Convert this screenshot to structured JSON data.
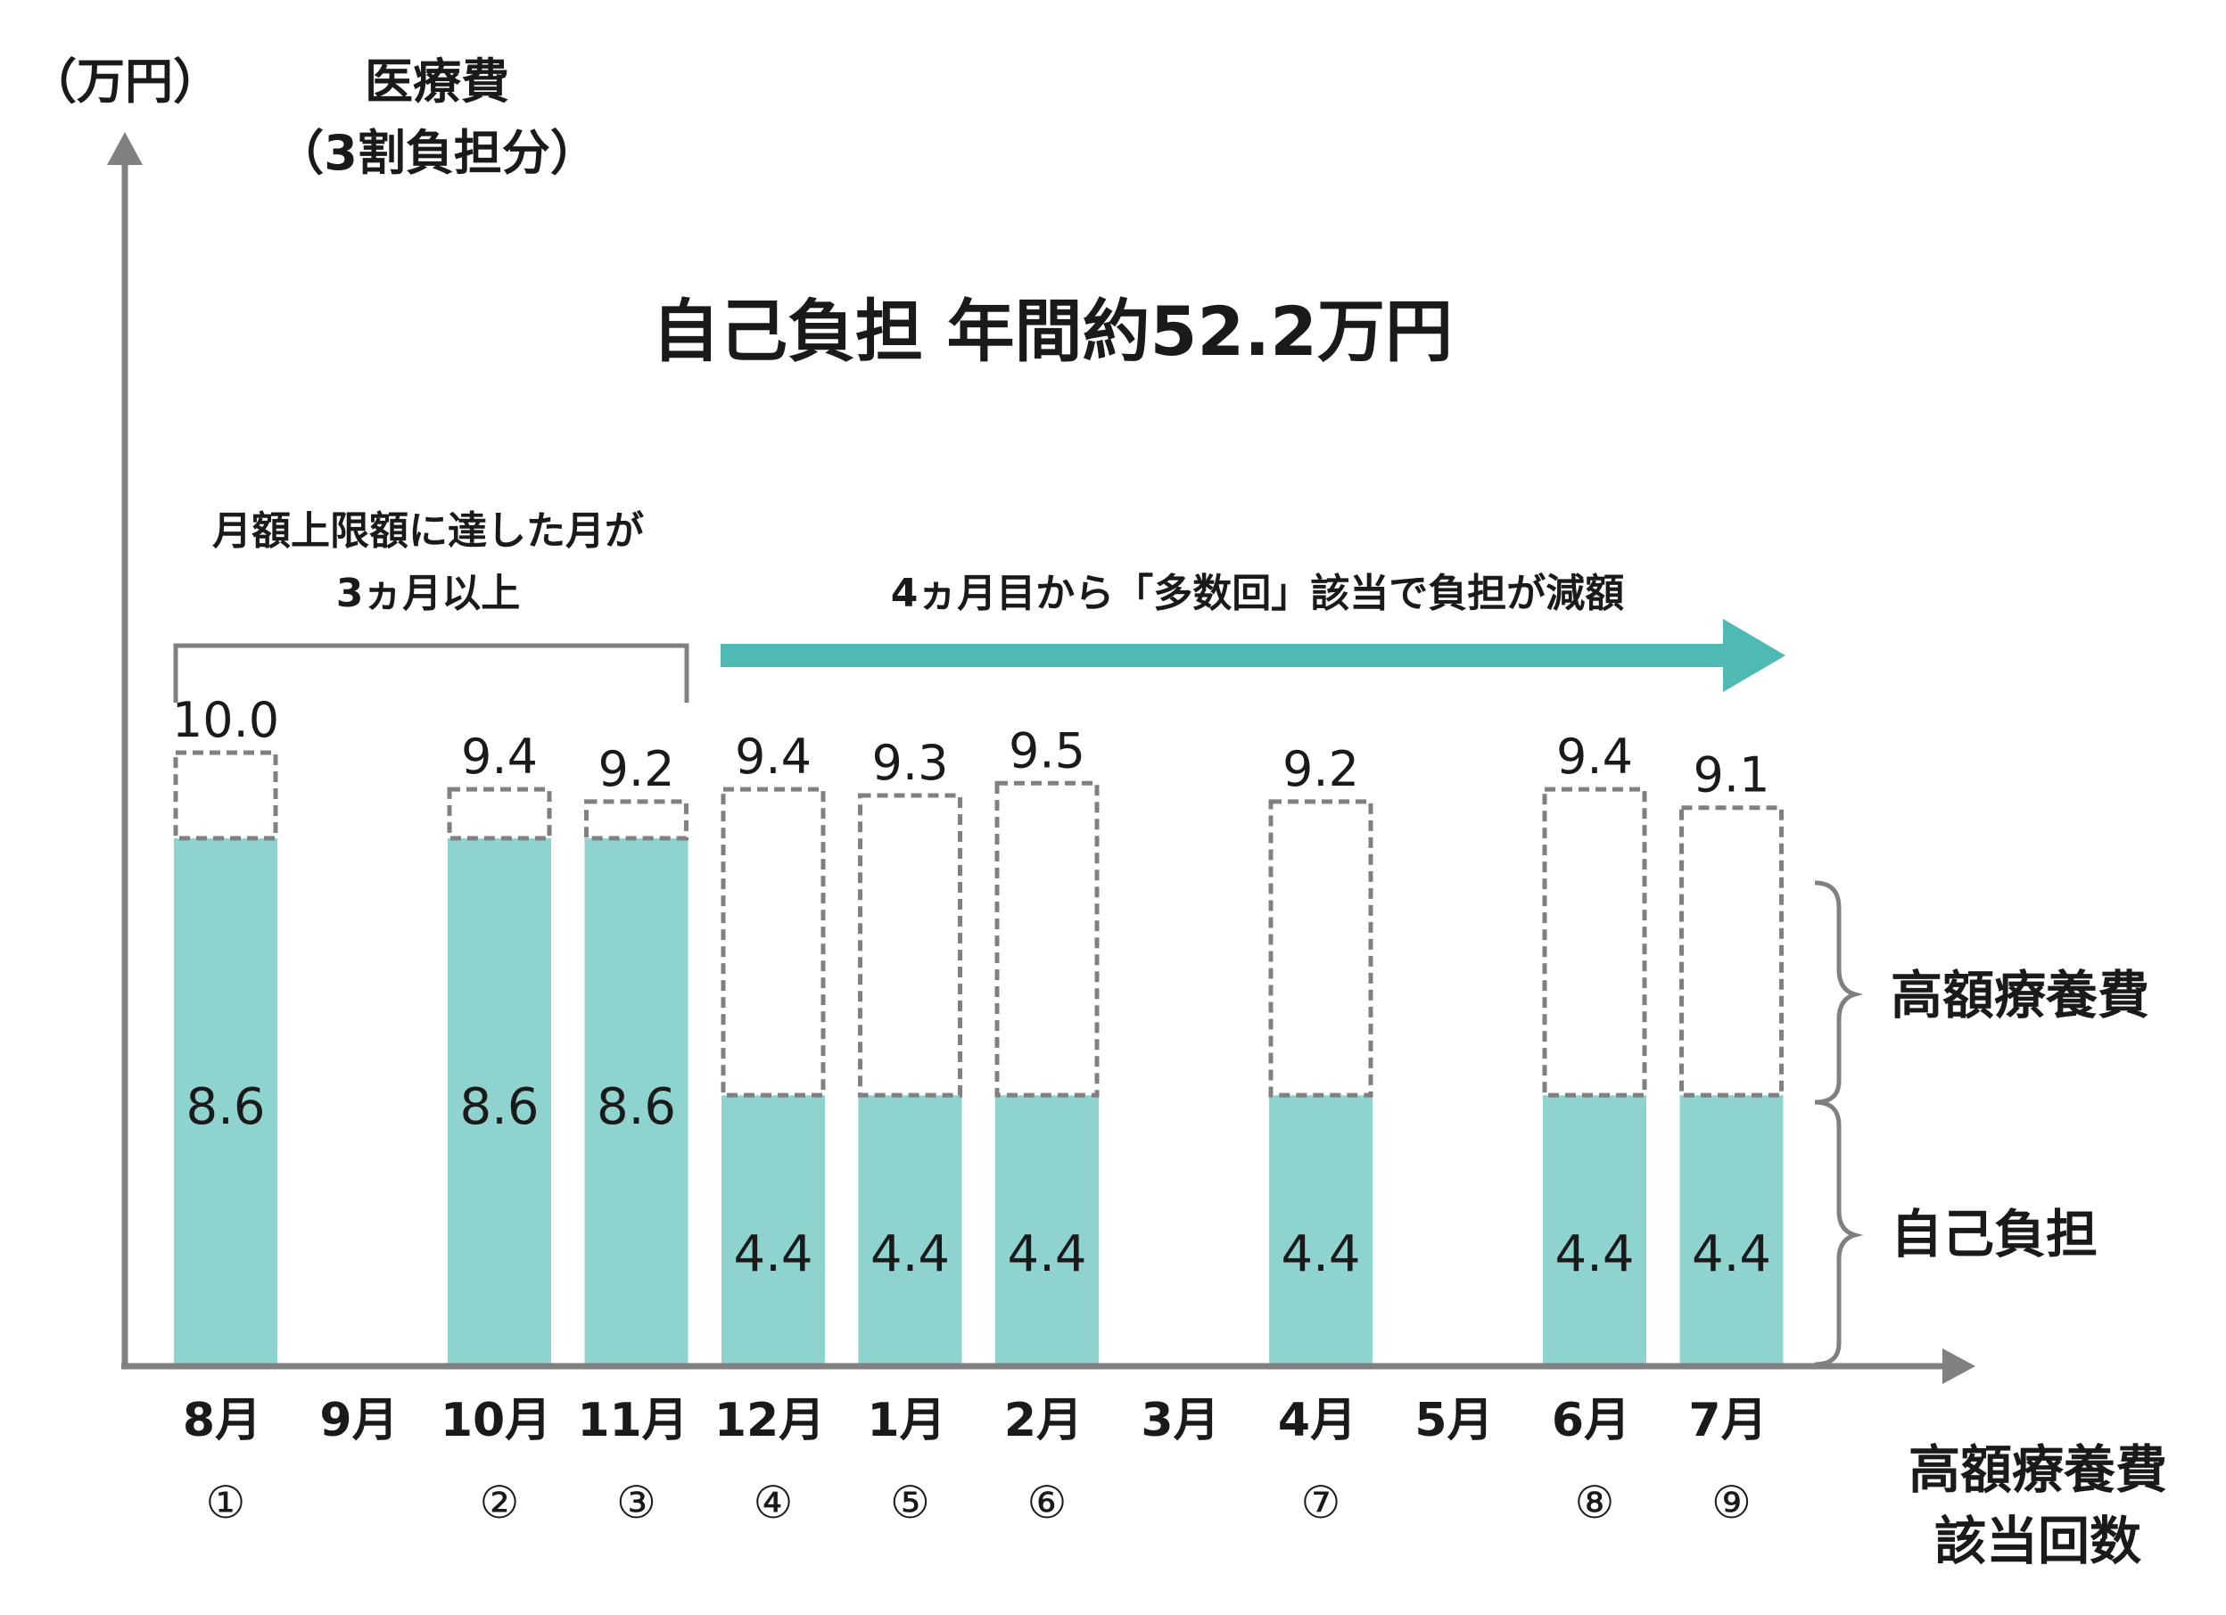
{
  "unit_label": "（万円）",
  "y_title_line1": "医療費",
  "y_title_line2": "（3割負担分）",
  "main_title": "自己負担  年間約52.2万円",
  "bracket_note_line1": "月額上限額に達した月が",
  "bracket_note_line2": "3ヵ月以上",
  "arrow_note": "4ヵ月目から「多数回」該当で負担が減額",
  "legend": {
    "upper": "高額療養費",
    "lower": "自己負担"
  },
  "count_label_line1": "高額療養費",
  "count_label_line2": "該当回数",
  "colors": {
    "self_pay": "#8fd3cf",
    "arrow": "#4fb9b3",
    "axis": "#808080",
    "dashed_border": "#808080"
  },
  "chart_data": {
    "type": "bar",
    "stacked": true,
    "categories": [
      "8月",
      "9月",
      "10月",
      "11月",
      "12月",
      "1月",
      "2月",
      "3月",
      "4月",
      "5月",
      "6月",
      "7月"
    ],
    "count_markers": [
      "①",
      "",
      "②",
      "③",
      "④",
      "⑤",
      "⑥",
      "",
      "⑦",
      "",
      "⑧",
      "⑨"
    ],
    "series": [
      {
        "name": "自己負担",
        "values": [
          8.6,
          null,
          8.6,
          8.6,
          4.4,
          4.4,
          4.4,
          null,
          4.4,
          null,
          4.4,
          4.4
        ]
      },
      {
        "name": "高額療養費",
        "values": [
          1.4,
          null,
          0.8,
          0.6,
          5.0,
          4.9,
          5.1,
          null,
          4.8,
          null,
          5.0,
          4.7
        ]
      }
    ],
    "totals": [
      10.0,
      null,
      9.4,
      9.2,
      9.4,
      9.3,
      9.5,
      null,
      9.2,
      null,
      9.4,
      9.1
    ],
    "total_labels": [
      "10.0",
      "",
      "9.4",
      "9.2",
      "9.4",
      "9.3",
      "9.5",
      "",
      "9.2",
      "",
      "9.4",
      "9.1"
    ],
    "self_pay_labels": [
      "8.6",
      "",
      "8.6",
      "8.6",
      "4.4",
      "4.4",
      "4.4",
      "",
      "4.4",
      "",
      "4.4",
      "4.4"
    ],
    "ylim": [
      0,
      10.0
    ],
    "grid": false
  }
}
